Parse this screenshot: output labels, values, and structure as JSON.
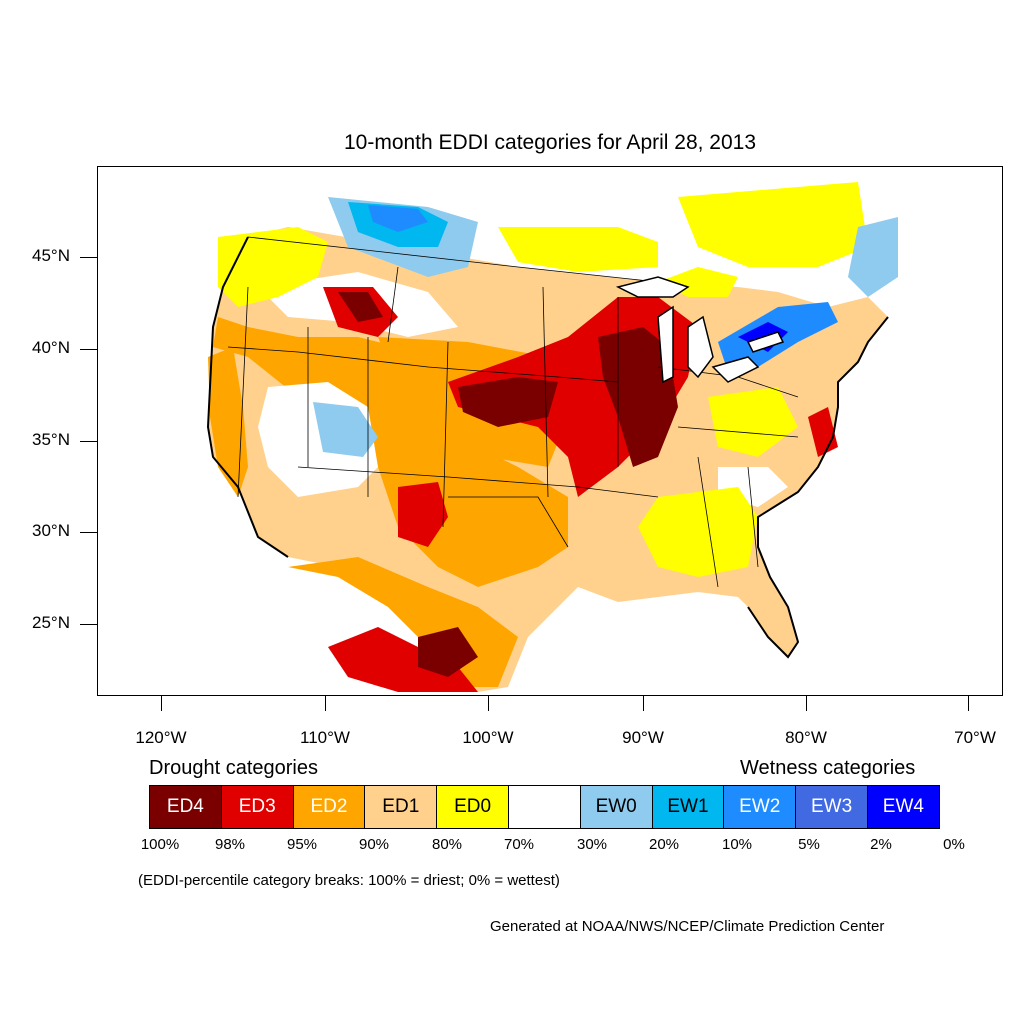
{
  "title": "10-month EDDI categories for April 28, 2013",
  "lat_labels": [
    "45°N",
    "40°N",
    "35°N",
    "30°N",
    "25°N"
  ],
  "lon_labels": [
    "120°W",
    "110°W",
    "100°W",
    "90°W",
    "80°W",
    "70°W"
  ],
  "legend": {
    "drought_heading": "Drought categories",
    "wetness_heading": "Wetness categories",
    "categories": [
      {
        "label": "ED4",
        "color": "#7a0000",
        "text_color": "#ffffff"
      },
      {
        "label": "ED3",
        "color": "#e00000",
        "text_color": "#ffffff"
      },
      {
        "label": "ED2",
        "color": "#ffa500",
        "text_color": "#ffffff"
      },
      {
        "label": "ED1",
        "color": "#ffd18c",
        "text_color": "#000000"
      },
      {
        "label": "ED0",
        "color": "#ffff00",
        "text_color": "#000000"
      },
      {
        "label": "",
        "color": "#ffffff",
        "text_color": "#000000"
      },
      {
        "label": "EW0",
        "color": "#8ecbee",
        "text_color": "#000000"
      },
      {
        "label": "EW1",
        "color": "#00b7ef",
        "text_color": "#000000"
      },
      {
        "label": "EW2",
        "color": "#1e8cff",
        "text_color": "#ffffff"
      },
      {
        "label": "EW3",
        "color": "#4169e1",
        "text_color": "#ffffff"
      },
      {
        "label": "EW4",
        "color": "#0000ff",
        "text_color": "#ffffff"
      }
    ],
    "percentiles": [
      "100%",
      "98%",
      "95%",
      "90%",
      "80%",
      "70%",
      "30%",
      "20%",
      "10%",
      "5%",
      "2%",
      "0%"
    ]
  },
  "note": "(EDDI-percentile category breaks: 100% = driest; 0% = wettest)",
  "credit": "Generated at NOAA/NWS/NCEP/Climate Prediction Center"
}
